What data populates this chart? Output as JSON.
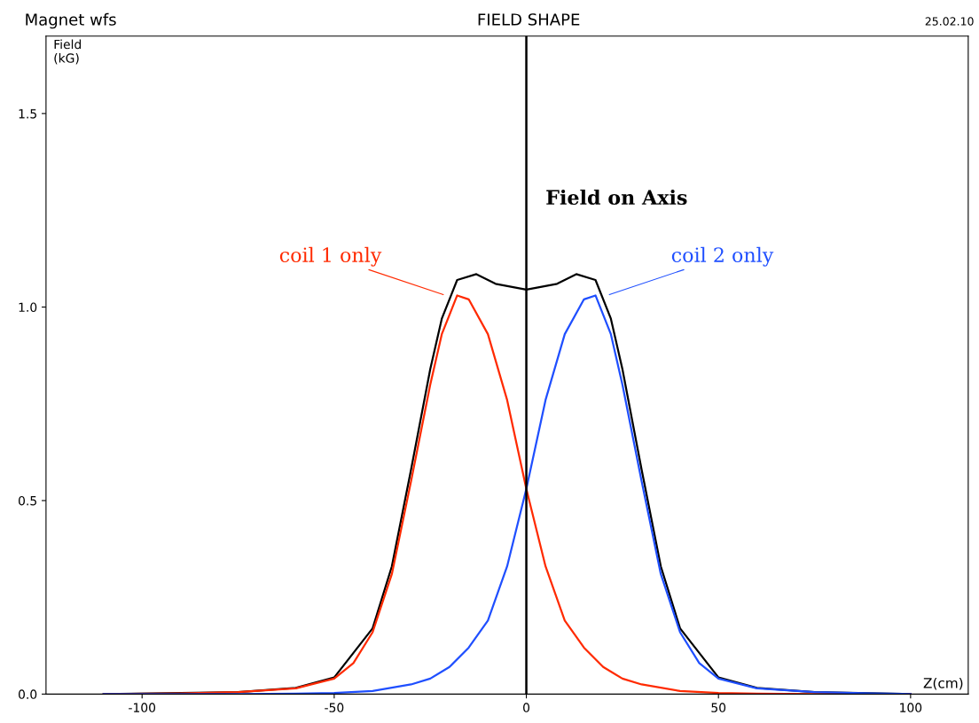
{
  "chart_data": {
    "type": "line",
    "title": "FIELD SHAPE",
    "xlabel": "Z(cm)",
    "ylabel": "Field\n(kG)",
    "xlim": [
      -125,
      115
    ],
    "ylim": [
      0,
      1.7
    ],
    "xticks": [
      -100,
      -50,
      0,
      50,
      100
    ],
    "yticks": [
      {
        "value": 0,
        "label": "0.0"
      },
      {
        "value": 0.5,
        "label": "0.5"
      },
      {
        "value": 1.0,
        "label": "1.0"
      },
      {
        "value": 1.5,
        "label": "1.5"
      }
    ],
    "grid": false,
    "legend": false,
    "marker": "none",
    "line_style": "solid",
    "ref_lines": [
      {
        "axis": "x",
        "value": 0,
        "label": null,
        "color": "#000000"
      }
    ],
    "annotations": [
      "Magnet wfs",
      "25.02.10"
    ],
    "series": [
      {
        "name": "coil 1 only",
        "color": "#ff2a00",
        "x": [
          -110,
          -90,
          -75,
          -60,
          -50,
          -45,
          -40,
          -35,
          -30,
          -25,
          -22,
          -18,
          -15,
          -10,
          -5,
          0,
          5,
          10,
          15,
          20,
          25,
          30,
          40,
          50,
          60,
          75,
          100
        ],
        "values": [
          0,
          0.002,
          0.005,
          0.015,
          0.04,
          0.08,
          0.16,
          0.31,
          0.55,
          0.8,
          0.93,
          1.03,
          1.02,
          0.93,
          0.76,
          0.53,
          0.33,
          0.19,
          0.12,
          0.07,
          0.04,
          0.025,
          0.008,
          0.003,
          0.001,
          0,
          0
        ]
      },
      {
        "name": "coil 2 only",
        "color": "#1f4fff",
        "x": [
          -110,
          -75,
          -60,
          -50,
          -40,
          -30,
          -25,
          -20,
          -15,
          -10,
          -5,
          0,
          5,
          10,
          15,
          18,
          22,
          25,
          30,
          35,
          40,
          45,
          50,
          60,
          75,
          90,
          100
        ],
        "values": [
          0,
          0,
          0.001,
          0.003,
          0.008,
          0.025,
          0.04,
          0.07,
          0.12,
          0.19,
          0.33,
          0.53,
          0.76,
          0.93,
          1.02,
          1.03,
          0.93,
          0.8,
          0.55,
          0.31,
          0.16,
          0.08,
          0.04,
          0.015,
          0.005,
          0.002,
          0
        ]
      },
      {
        "name": "Field on Axis",
        "color": "#000000",
        "x": [
          -110,
          -75,
          -60,
          -50,
          -40,
          -35,
          -30,
          -25,
          -22,
          -18,
          -13,
          -8,
          0,
          8,
          13,
          18,
          22,
          25,
          30,
          35,
          40,
          50,
          60,
          75,
          100
        ],
        "values": [
          0,
          0.005,
          0.016,
          0.043,
          0.17,
          0.33,
          0.58,
          0.84,
          0.97,
          1.07,
          1.085,
          1.06,
          1.045,
          1.06,
          1.085,
          1.07,
          0.97,
          0.84,
          0.58,
          0.33,
          0.17,
          0.043,
          0.016,
          0.005,
          0
        ]
      }
    ]
  }
}
